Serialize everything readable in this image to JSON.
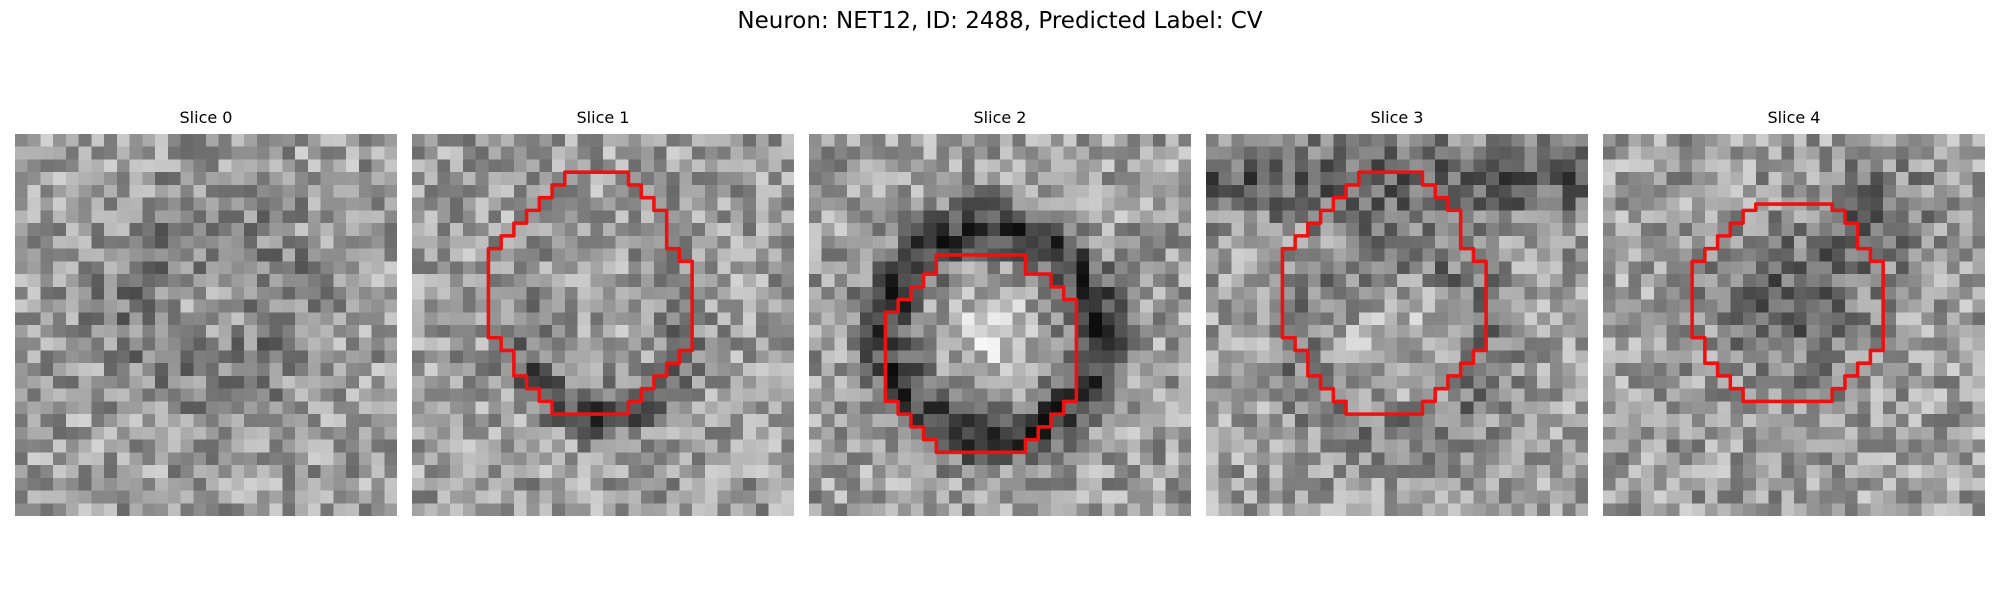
{
  "figure": {
    "title": "Neuron: NET12, ID: 2488, Predicted Label: CV"
  },
  "panels": [
    {
      "title": "Slice 0",
      "seed": 101,
      "contour": false,
      "ring": "faint",
      "ring_center": [
        0.5,
        0.45
      ],
      "ring_radius": 0.2
    },
    {
      "title": "Slice 1",
      "seed": 202,
      "contour": true,
      "contour_id": 1,
      "ring": "dark-lower",
      "ring_center": [
        0.5,
        0.52
      ],
      "ring_radius": 0.25
    },
    {
      "title": "Slice 2",
      "seed": 303,
      "contour": true,
      "contour_id": 2,
      "ring": "dark-full",
      "ring_center": [
        0.48,
        0.52
      ],
      "ring_radius": 0.29
    },
    {
      "title": "Slice 3",
      "seed": 404,
      "contour": true,
      "contour_id": 1,
      "ring": "dark-top",
      "ring_center": [
        0.5,
        0.55
      ],
      "ring_radius": 0.25
    },
    {
      "title": "Slice 4",
      "seed": 505,
      "contour": true,
      "contour_id": 3,
      "ring": "dark-blob",
      "ring_center": [
        0.5,
        0.45
      ],
      "ring_radius": 0.2
    }
  ],
  "style": {
    "contour_color": "#ee1111",
    "background": "#ffffff"
  }
}
